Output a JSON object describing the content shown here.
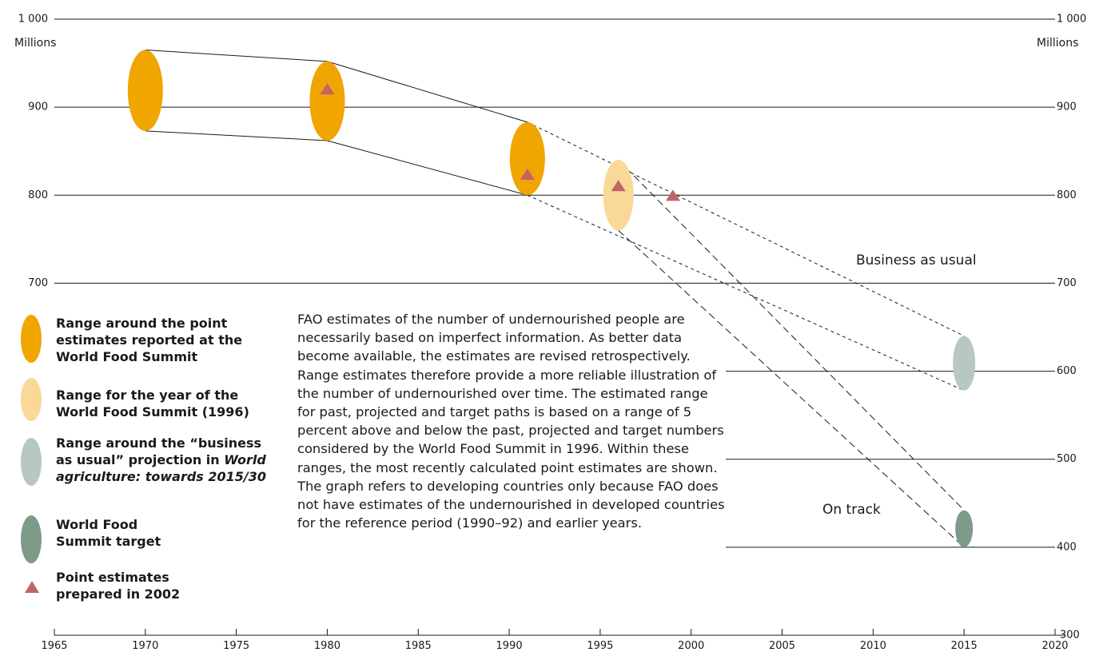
{
  "chart_data": {
    "type": "scatter",
    "y_unit": "Millions",
    "ylim": [
      300,
      1000
    ],
    "xlim": [
      1965,
      2020
    ],
    "y_ticks": [
      "300",
      "400",
      "500",
      "600",
      "700",
      "800",
      "900",
      "1 000"
    ],
    "x_ticks": [
      "1965",
      "1970",
      "1975",
      "1980",
      "1985",
      "1990",
      "1995",
      "2000",
      "2005",
      "2010",
      "2015",
      "2020"
    ],
    "ranges": [
      {
        "legend": "summit_range",
        "x": 1970,
        "low": 873,
        "high": 965
      },
      {
        "legend": "summit_range",
        "x": 1980,
        "low": 862,
        "high": 952
      },
      {
        "legend": "summit_range",
        "x": 1991,
        "low": 800,
        "high": 883
      },
      {
        "legend": "year_1996_range",
        "x": 1996,
        "low": 760,
        "high": 840
      },
      {
        "legend": "bau_range",
        "x": 2015,
        "low": 578,
        "high": 640
      },
      {
        "legend": "target_range",
        "x": 2015,
        "low": 400,
        "high": 442
      }
    ],
    "point_estimates_2002": [
      {
        "x": 1980,
        "y": 920
      },
      {
        "x": 1991,
        "y": 823
      },
      {
        "x": 1996,
        "y": 810
      },
      {
        "x": 1999,
        "y": 799
      }
    ],
    "annotations": {
      "business_as_usual": "Business as usual",
      "on_track": "On track"
    },
    "colors": {
      "summit_range": "#f0a500",
      "year_1996_range": "#f9d898",
      "bau_range": "#b6c8c1",
      "target_range": "#7c9c89",
      "point_estimates": "#c06468"
    }
  },
  "legend": {
    "summit_range": {
      "lines": [
        "Range around the point",
        "estimates reported at the",
        "World Food Summit"
      ]
    },
    "year_1996_range": {
      "lines": [
        "Range for the year of the",
        "World Food Summit (1996)"
      ]
    },
    "bau_range": {
      "line1": "Range around the “business",
      "line2_a": "as usual” projection in ",
      "line2_b": "World",
      "line3": "agriculture: towards 2015/30"
    },
    "target_range": {
      "lines": [
        "World Food",
        "Summit target"
      ]
    },
    "point_estimates": {
      "lines": [
        "Point estimates",
        "prepared in 2002"
      ]
    }
  },
  "note": "FAO estimates of the number of undernourished people are necessarily based on imperfect information. As better data become available, the estimates are revised retrospectively. Range estimates therefore provide a more reliable illustration of the number of undernourished over time. The estimated range for past, projected and target paths is based on a range of 5 percent above and below the past, projected and target numbers considered by the World Food Summit in 1996. Within these ranges, the most recently calculated point estimates are shown. The graph refers to developing countries only because FAO does not have estimates of the undernourished in developed countries for the reference period (1990–92) and earlier years."
}
